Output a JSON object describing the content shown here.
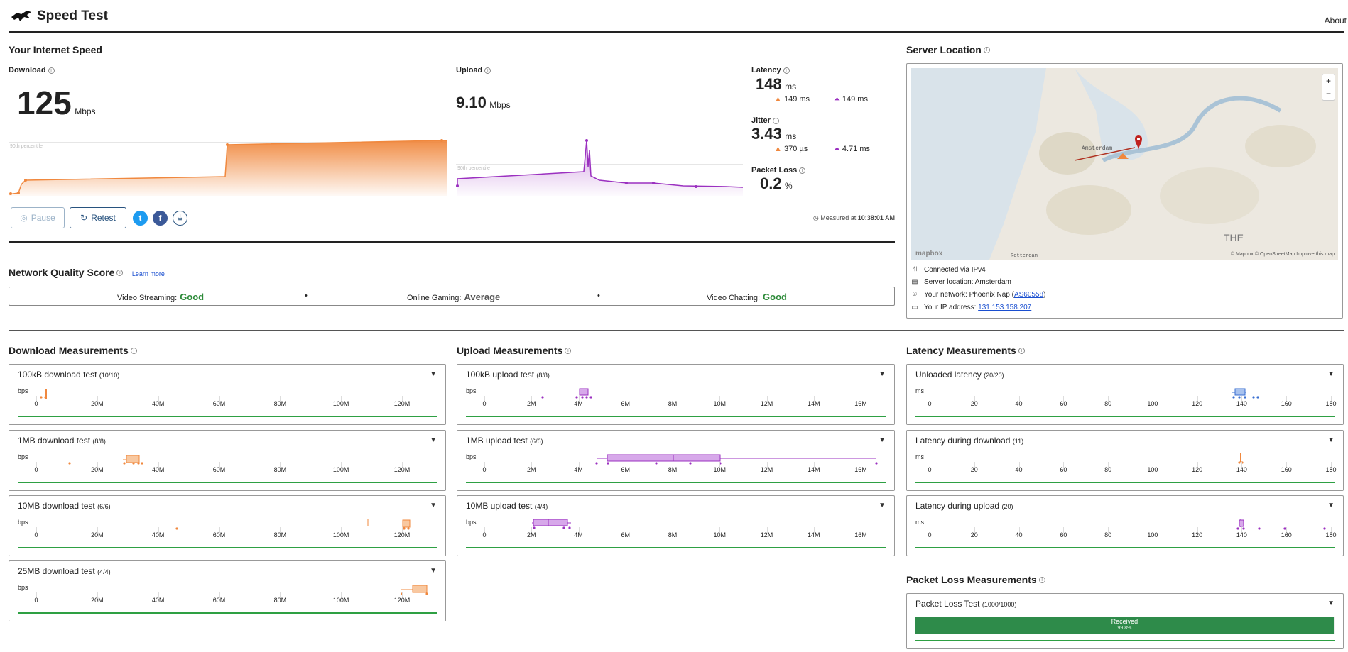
{
  "header": {
    "title": "Speed Test",
    "about": "About"
  },
  "speed": {
    "title": "Your Internet Speed",
    "download": {
      "label": "Download",
      "value": "125",
      "unit": "Mbps",
      "percentile": "90th percentile"
    },
    "upload": {
      "label": "Upload",
      "value": "9.10",
      "unit": "Mbps",
      "percentile": "90th percentile"
    },
    "latency": {
      "label": "Latency",
      "value": "148",
      "unit": "ms",
      "down": "149 ms",
      "up": "149 ms"
    },
    "jitter": {
      "label": "Jitter",
      "value": "3.43",
      "unit": "ms",
      "down": "370 µs",
      "up": "4.71 ms"
    },
    "packet_loss": {
      "label": "Packet Loss",
      "value": "0.2",
      "unit": "%"
    },
    "pause_label": "Pause",
    "retest_label": "Retest",
    "measured_prefix": "Measured at",
    "measured_time": "10:38:01 AM"
  },
  "server": {
    "title": "Server Location",
    "map_city": "Amsterdam",
    "map_south": "Rotterdam",
    "map_the": "THE",
    "map_brand": "mapbox",
    "map_attr": "© Mapbox © OpenStreetMap  Improve this map",
    "zoom_in": "+",
    "zoom_out": "−",
    "connected": "Connected via IPv4",
    "location_label": "Server location:",
    "location_value": "Amsterdam",
    "network_label": "Your network:",
    "network_value": "Phoenix Nap",
    "network_as": "AS60558",
    "ip_label": "Your IP address:",
    "ip_value": "131.153.158.207"
  },
  "nqs": {
    "title": "Network Quality Score",
    "learn_more": "Learn more",
    "items": [
      {
        "label": "Video Streaming:",
        "value": "Good"
      },
      {
        "label": "Online Gaming:",
        "value": "Average"
      },
      {
        "label": "Video Chatting:",
        "value": "Good"
      }
    ]
  },
  "download_measurements": {
    "title": "Download Measurements",
    "unit": "bps",
    "ticks": [
      "0",
      "20M",
      "40M",
      "60M",
      "80M",
      "100M",
      "120M"
    ],
    "tests": [
      {
        "name": "100kB download test",
        "count": "(10/10)"
      },
      {
        "name": "1MB download test",
        "count": "(8/8)"
      },
      {
        "name": "10MB download test",
        "count": "(6/6)"
      },
      {
        "name": "25MB download test",
        "count": "(4/4)"
      }
    ]
  },
  "upload_measurements": {
    "title": "Upload Measurements",
    "unit": "bps",
    "ticks": [
      "0",
      "2M",
      "4M",
      "6M",
      "8M",
      "10M",
      "12M",
      "14M",
      "16M"
    ],
    "tests": [
      {
        "name": "100kB upload test",
        "count": "(8/8)"
      },
      {
        "name": "1MB upload test",
        "count": "(6/6)"
      },
      {
        "name": "10MB upload test",
        "count": "(4/4)"
      }
    ]
  },
  "latency_measurements": {
    "title": "Latency Measurements",
    "unit": "ms",
    "ticks": [
      "0",
      "20",
      "40",
      "60",
      "80",
      "100",
      "120",
      "140",
      "160",
      "180"
    ],
    "tests": [
      {
        "name": "Unloaded latency",
        "count": "(20/20)"
      },
      {
        "name": "Latency during download",
        "count": "(11)"
      },
      {
        "name": "Latency during upload",
        "count": "(20)"
      }
    ]
  },
  "packet_loss_measurements": {
    "title": "Packet Loss Measurements",
    "test_name": "Packet Loss Test",
    "count": "(1000/1000)",
    "bar_label": "Received",
    "bar_value": "99.8%",
    "received_fraction": 0.998
  },
  "colors": {
    "download": "#f0883e",
    "upload": "#9b30c0",
    "latency": "#3a6fd1",
    "good": "#2e8b3a",
    "received": "#2e8b4a"
  }
}
